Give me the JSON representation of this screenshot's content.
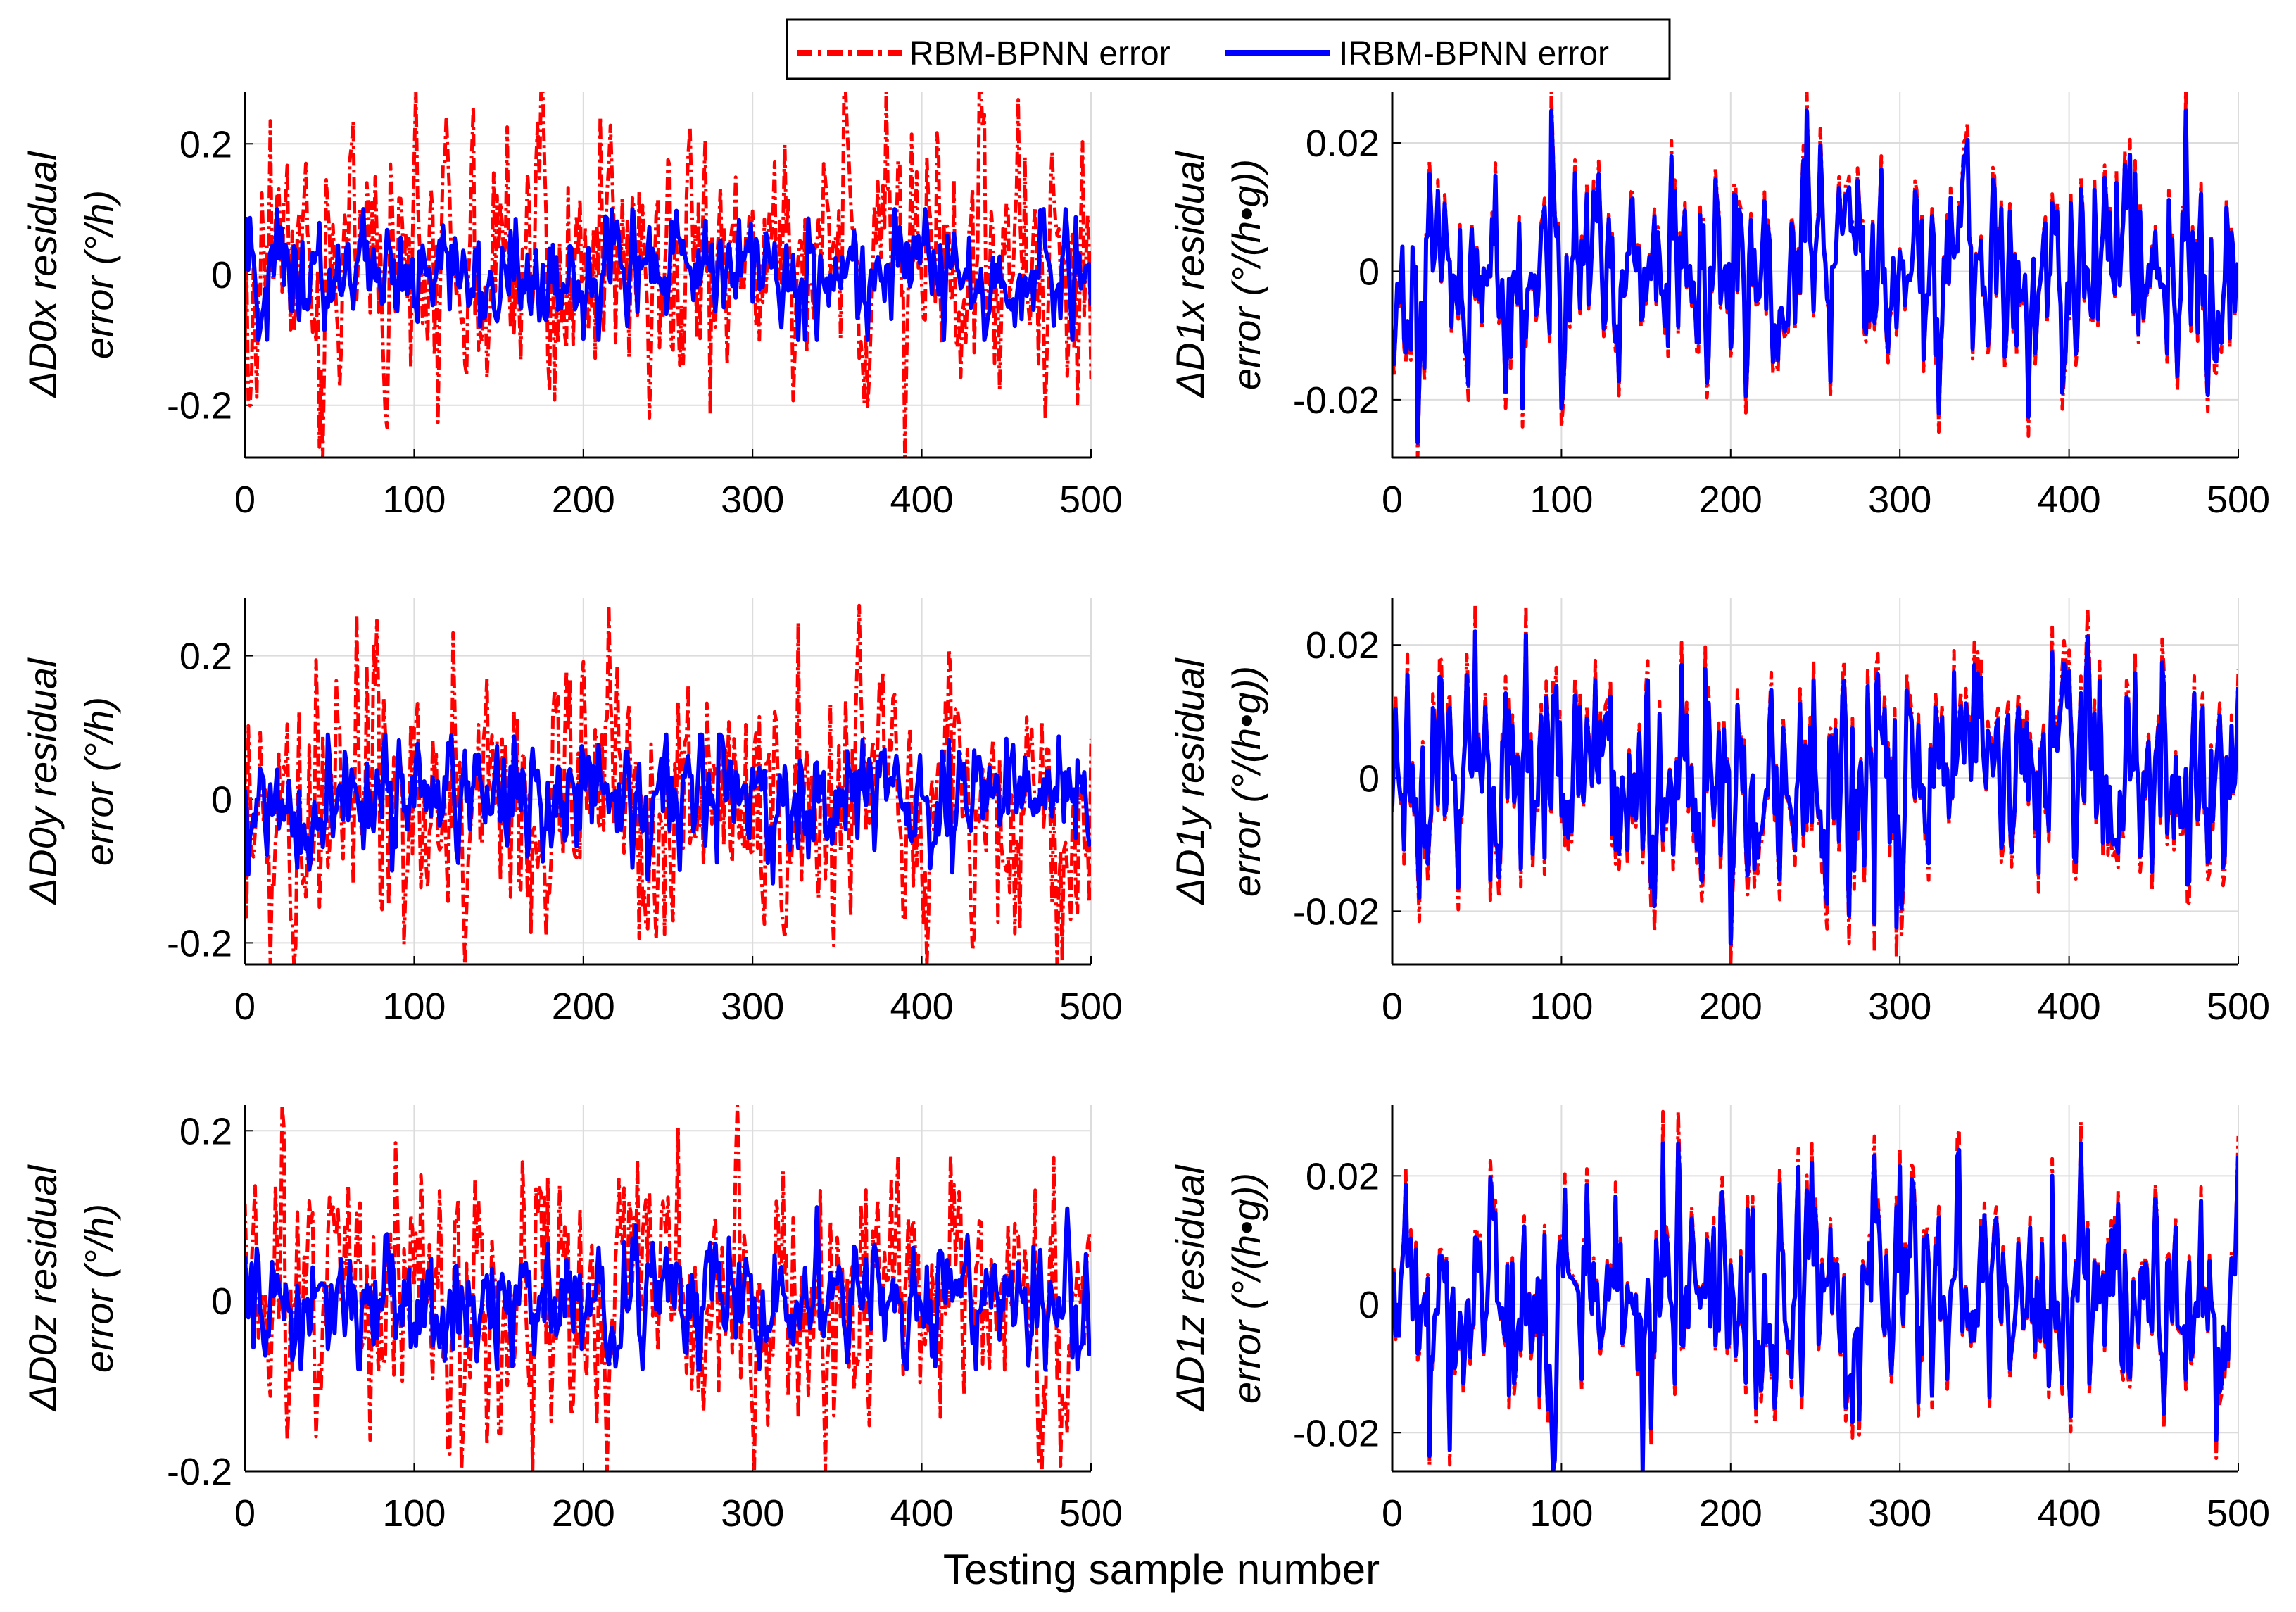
{
  "chart_data": {
    "type": "line",
    "layout": "3x2 grid",
    "xlabel": "Testing sample number",
    "legend": {
      "placement": "top-center",
      "entries": [
        {
          "name": "RBM-BPNN error",
          "color": "#ff0000",
          "style": "dash-dot"
        },
        {
          "name": "IRBM-BPNN error",
          "color": "#0000ff",
          "style": "solid"
        }
      ]
    },
    "panels": [
      {
        "id": "d0x",
        "ylabel": [
          "ΔD0x residual",
          "error (°/h)"
        ],
        "xlim": [
          0,
          500
        ],
        "ylim": [
          -0.28,
          0.28
        ],
        "xticks": [
          "0",
          "100",
          "200",
          "300",
          "400",
          "500"
        ],
        "yticks": [
          -0.2,
          0,
          0.2
        ],
        "yticklabels": [
          "-0.2",
          "0",
          "0.2"
        ],
        "series": [
          {
            "name": "RBM-BPNN error",
            "amp": 0.09,
            "peak_max": 0.28,
            "peak_min": -0.28,
            "seed": 11
          },
          {
            "name": "IRBM-BPNN error",
            "amp": 0.035,
            "peak_max": 0.1,
            "peak_min": -0.1,
            "seed": 12
          }
        ]
      },
      {
        "id": "d1x",
        "ylabel": [
          "ΔD1x residual",
          "error (°/(h•g))"
        ],
        "xlim": [
          0,
          500
        ],
        "ylim": [
          -0.029,
          0.028
        ],
        "xticks": [
          "0",
          "100",
          "200",
          "300",
          "400",
          "500"
        ],
        "yticks": [
          -0.02,
          0,
          0.02
        ],
        "yticklabels": [
          "-0.02",
          "0",
          "0.02"
        ],
        "series": [
          {
            "name": "RBM-BPNN error",
            "amp": 0.0085,
            "peak_max": 0.028,
            "peak_min": -0.029,
            "seed": 21
          },
          {
            "name": "IRBM-BPNN error",
            "amp": 0.0075,
            "peak_max": 0.025,
            "peak_min": -0.027,
            "seed": 21
          }
        ]
      },
      {
        "id": "d0y",
        "ylabel": [
          "ΔD0y residual",
          "error (°/h)"
        ],
        "xlim": [
          0,
          500
        ],
        "ylim": [
          -0.23,
          0.28
        ],
        "xticks": [
          "0",
          "100",
          "200",
          "300",
          "400",
          "500"
        ],
        "yticks": [
          -0.2,
          0,
          0.2
        ],
        "yticklabels": [
          "-0.2",
          "0",
          "0.2"
        ],
        "series": [
          {
            "name": "RBM-BPNN error",
            "amp": 0.085,
            "peak_max": 0.27,
            "peak_min": -0.23,
            "seed": 31
          },
          {
            "name": "IRBM-BPNN error",
            "amp": 0.035,
            "peak_max": 0.09,
            "peak_min": -0.12,
            "seed": 32
          }
        ]
      },
      {
        "id": "d1y",
        "ylabel": [
          "ΔD1y residual",
          "error (°/(h•g))"
        ],
        "xlim": [
          0,
          500
        ],
        "ylim": [
          -0.028,
          0.027
        ],
        "xticks": [
          "0",
          "100",
          "200",
          "300",
          "400",
          "500"
        ],
        "yticks": [
          -0.02,
          0,
          0.02
        ],
        "yticklabels": [
          "-0.02",
          "0",
          "0.02"
        ],
        "series": [
          {
            "name": "RBM-BPNN error",
            "amp": 0.009,
            "peak_max": 0.026,
            "peak_min": -0.028,
            "seed": 41
          },
          {
            "name": "IRBM-BPNN error",
            "amp": 0.0075,
            "peak_max": 0.026,
            "peak_min": -0.025,
            "seed": 41
          }
        ]
      },
      {
        "id": "d0z",
        "ylabel": [
          "ΔD0z residual",
          "error (°/h)"
        ],
        "xlim": [
          0,
          500
        ],
        "ylim": [
          -0.2,
          0.23
        ],
        "xticks": [
          "0",
          "100",
          "200",
          "300",
          "400",
          "500"
        ],
        "yticks": [
          -0.2,
          0,
          0.2
        ],
        "yticklabels": [
          "-0.2",
          "0",
          "0.2"
        ],
        "series": [
          {
            "name": "RBM-BPNN error",
            "amp": 0.065,
            "peak_max": 0.23,
            "peak_min": -0.2,
            "seed": 51
          },
          {
            "name": "IRBM-BPNN error",
            "amp": 0.03,
            "peak_max": 0.11,
            "peak_min": -0.08,
            "seed": 52
          }
        ]
      },
      {
        "id": "d1z",
        "ylabel": [
          "ΔD1z residual",
          "error (°/(h•g))"
        ],
        "xlim": [
          0,
          500
        ],
        "ylim": [
          -0.026,
          0.031
        ],
        "xticks": [
          "0",
          "100",
          "200",
          "300",
          "400",
          "500"
        ],
        "yticks": [
          -0.02,
          0,
          0.02
        ],
        "yticklabels": [
          "-0.02",
          "0",
          "0.02"
        ],
        "series": [
          {
            "name": "RBM-BPNN error",
            "amp": 0.0085,
            "peak_max": 0.03,
            "peak_min": -0.025,
            "seed": 61
          },
          {
            "name": "IRBM-BPNN error",
            "amp": 0.0075,
            "peak_max": 0.025,
            "peak_min": -0.026,
            "seed": 61
          }
        ]
      }
    ]
  }
}
